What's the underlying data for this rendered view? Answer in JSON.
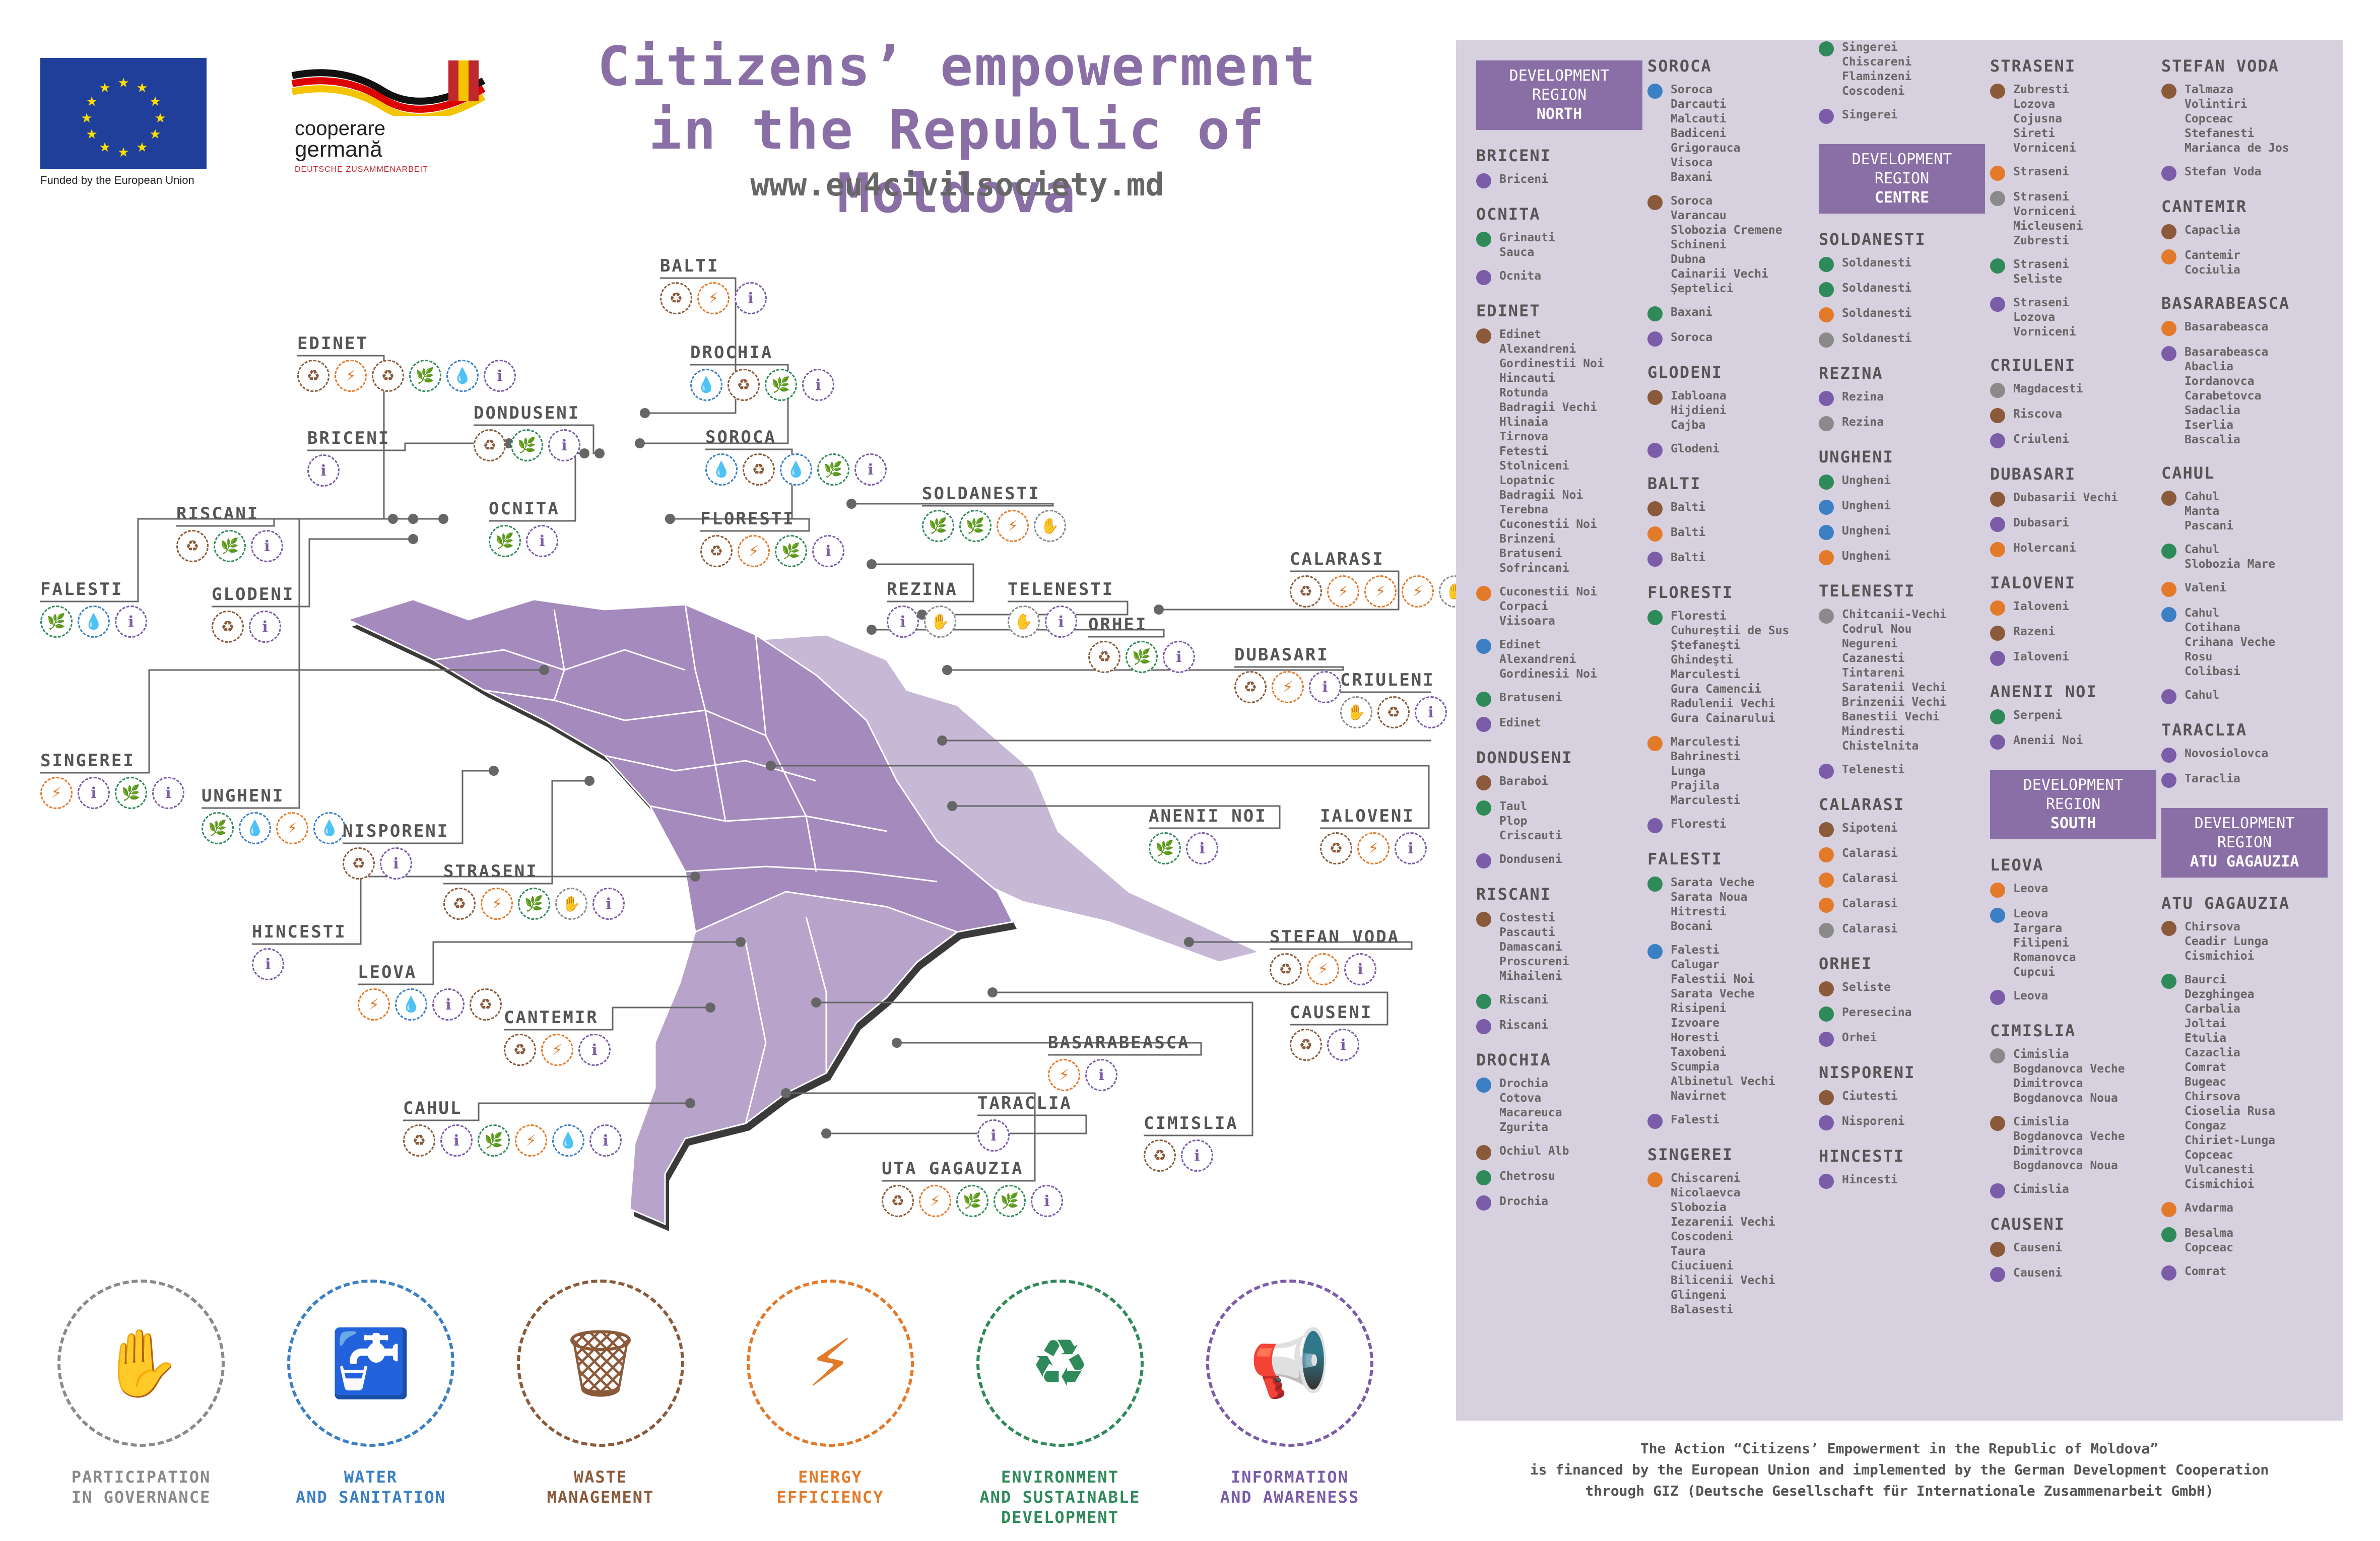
{
  "header": {
    "eu_caption": "Funded by the European Union",
    "coop_line1": "cooperare",
    "coop_line2": "germană",
    "coop_line3": "DEUTSCHE ZUSAMMENARBEIT",
    "title_line1": "Citizens’ empowerment",
    "title_line2": "in the Republic of Moldova",
    "url": "www.eu4civilsociety.md"
  },
  "colors": {
    "title": "#8a6fa6",
    "map_fill": "#a58bbd",
    "map_light": "#c7b8d6",
    "panel_bg": "#d7d0de",
    "region_box": "#8a6fa6",
    "governance": "#8a8a8a",
    "water": "#3b7fc4",
    "waste": "#8a5a3a",
    "energy": "#e37a2a",
    "environment": "#2f8a5a",
    "information": "#7b5ca8"
  },
  "map_districts": [
    {
      "name": "BALTI",
      "icons": [
        "waste",
        "energy",
        "information"
      ]
    },
    {
      "name": "EDINET",
      "icons": [
        "waste",
        "energy",
        "waste",
        "environment",
        "water",
        "information"
      ]
    },
    {
      "name": "DROCHIA",
      "icons": [
        "water",
        "waste",
        "environment",
        "information"
      ]
    },
    {
      "name": "DONDUSENI",
      "icons": [
        "waste",
        "environment",
        "information"
      ]
    },
    {
      "name": "SOROCA",
      "icons": [
        "water",
        "waste",
        "water",
        "environment",
        "information"
      ]
    },
    {
      "name": "BRICENI",
      "icons": [
        "information"
      ]
    },
    {
      "name": "SOLDANESTI",
      "icons": [
        "environment",
        "environment",
        "energy",
        "governance"
      ]
    },
    {
      "name": "OCNITA",
      "icons": [
        "environment",
        "information"
      ]
    },
    {
      "name": "RISCANI",
      "icons": [
        "waste",
        "environment",
        "information"
      ]
    },
    {
      "name": "FLORESTI",
      "icons": [
        "waste",
        "energy",
        "environment",
        "information"
      ]
    },
    {
      "name": "REZINA",
      "icons": [
        "information",
        "governance"
      ]
    },
    {
      "name": "TELENESTI",
      "icons": [
        "governance",
        "information"
      ]
    },
    {
      "name": "CALARASI",
      "icons": [
        "waste",
        "energy",
        "energy",
        "energy",
        "governance"
      ]
    },
    {
      "name": "FALESTI",
      "icons": [
        "environment",
        "water",
        "information"
      ]
    },
    {
      "name": "GLODENI",
      "icons": [
        "waste",
        "information"
      ]
    },
    {
      "name": "ORHEI",
      "icons": [
        "waste",
        "environment",
        "information"
      ]
    },
    {
      "name": "DUBASARI",
      "icons": [
        "waste",
        "energy",
        "information"
      ]
    },
    {
      "name": "CRIULENI",
      "icons": [
        "governance",
        "waste",
        "information"
      ]
    },
    {
      "name": "SINGEREI",
      "icons": [
        "energy",
        "information",
        "environment",
        "information"
      ]
    },
    {
      "name": "UNGHENI",
      "icons": [
        "environment",
        "water",
        "energy",
        "water"
      ]
    },
    {
      "name": "NISPORENI",
      "icons": [
        "waste",
        "information"
      ]
    },
    {
      "name": "ANENII NOI",
      "icons": [
        "environment",
        "information"
      ]
    },
    {
      "name": "IALOVENI",
      "icons": [
        "waste",
        "energy",
        "information"
      ]
    },
    {
      "name": "STRASENI",
      "icons": [
        "waste",
        "energy",
        "environment",
        "governance",
        "information"
      ]
    },
    {
      "name": "HINCESTI",
      "icons": [
        "information"
      ]
    },
    {
      "name": "STEFAN VODA",
      "icons": [
        "waste",
        "energy",
        "information"
      ]
    },
    {
      "name": "LEOVA",
      "icons": [
        "energy",
        "water",
        "information",
        "waste"
      ]
    },
    {
      "name": "CAUSENI",
      "icons": [
        "waste",
        "information"
      ]
    },
    {
      "name": "CANTEMIR",
      "icons": [
        "waste",
        "energy",
        "information"
      ]
    },
    {
      "name": "BASARABEASCA",
      "icons": [
        "energy",
        "information"
      ]
    },
    {
      "name": "CAHUL",
      "icons": [
        "waste",
        "information",
        "environment",
        "energy",
        "water",
        "information"
      ]
    },
    {
      "name": "TARACLIA",
      "icons": [
        "information"
      ]
    },
    {
      "name": "CIMISLIA",
      "icons": [
        "waste",
        "information"
      ]
    },
    {
      "name": "UTA GAGAUZIA",
      "icons": [
        "waste",
        "energy",
        "environment",
        "environment",
        "information"
      ]
    }
  ],
  "legend": [
    {
      "key": "governance",
      "line1": "PARTICIPATION",
      "line2": "IN GOVERNANCE",
      "line3": "",
      "icon": "people-raising-hands-icon",
      "glyph": "✋"
    },
    {
      "key": "water",
      "line1": "WATER",
      "line2": "AND SANITATION",
      "line3": "",
      "icon": "water-tap-icon",
      "glyph": "🚰"
    },
    {
      "key": "waste",
      "line1": "WASTE",
      "line2": "MANAGEMENT",
      "line3": "",
      "icon": "recycling-bin-icon",
      "glyph": "🗑"
    },
    {
      "key": "energy",
      "line1": "ENERGY",
      "line2": "EFFICIENCY",
      "line3": "",
      "icon": "house-energy-icon",
      "glyph": "⚡"
    },
    {
      "key": "environment",
      "line1": "ENVIRONMENT",
      "line2": "AND SUSTAINABLE",
      "line3": "DEVELOPMENT",
      "icon": "recycle-leaf-icon",
      "glyph": "♻"
    },
    {
      "key": "information",
      "line1": "INFORMATION",
      "line2": "AND AWARENESS",
      "line3": "",
      "icon": "megaphone-icon",
      "glyph": "📢"
    }
  ],
  "panel": {
    "columns": [
      [
        {
          "box": [
            "DEVELOPMENT",
            "REGION",
            "NORTH"
          ]
        },
        {
          "h": "BRICENI"
        },
        {
          "e": "Briceni",
          "c": "information"
        },
        {
          "h": "OCNITA"
        },
        {
          "e": "Grinauti\nSauca",
          "c": "environment"
        },
        {
          "e": "Ocnita",
          "c": "information"
        },
        {
          "h": "EDINET"
        },
        {
          "e": "Edinet\nAlexandreni\nGordinestii Noi\nHincauti\nRotunda\nBadragii Vechi\nHlinaia\nTirnova\nFetesti\nStolniceni\nLopatnic\nBadragii Noi\nTerebna\nCuconestii Noi\nBrinzeni\nBratuseni\nSofrincani",
          "c": "waste"
        },
        {
          "e": "Cuconestii Noi\nCorpaci\nViisoara",
          "c": "energy"
        },
        {
          "e": "Edinet\nAlexandreni\nGordinesii Noi",
          "c": "water"
        },
        {
          "e": "Bratuseni",
          "c": "environment"
        },
        {
          "e": "Edinet",
          "c": "information"
        },
        {
          "h": "DONDUSENI"
        },
        {
          "e": "Baraboi",
          "c": "waste"
        },
        {
          "e": "Taul\nPlop\nCriscauti",
          "c": "environment"
        },
        {
          "e": "Donduseni",
          "c": "information"
        },
        {
          "h": "RISCANI"
        },
        {
          "e": "Costesti\nPascauti\nDamascani\nProscureni\nMihaileni",
          "c": "waste"
        },
        {
          "e": "Riscani",
          "c": "environment"
        },
        {
          "e": "Riscani",
          "c": "information"
        },
        {
          "h": "DROCHIA"
        },
        {
          "e": "Drochia\nCotova\nMacareuca\nZgurita",
          "c": "water"
        },
        {
          "e": "Ochiul Alb",
          "c": "waste"
        },
        {
          "e": "Chetrosu",
          "c": "environment"
        },
        {
          "e": "Drochia",
          "c": "information"
        }
      ],
      [
        {
          "h": "SOROCA"
        },
        {
          "e": "Soroca\nDarcauti\nMalcauti\nBadiceni\nGrigorauca\nVisoca\nBaxani",
          "c": "water"
        },
        {
          "e": "Soroca\nVarancau\nSlobozia Cremene\nSchineni\nDubna\nCainarii Vechi\nŞeptelici",
          "c": "waste"
        },
        {
          "e": "Baxani",
          "c": "environment"
        },
        {
          "e": "Soroca",
          "c": "information"
        },
        {
          "h": "GLODENI"
        },
        {
          "e": "Iabloana\nHijdieni\nCajba",
          "c": "waste"
        },
        {
          "e": "Glodeni",
          "c": "information"
        },
        {
          "h": "BALTI"
        },
        {
          "e": "Balti",
          "c": "waste"
        },
        {
          "e": "Balti",
          "c": "energy"
        },
        {
          "e": "Balti",
          "c": "information"
        },
        {
          "h": "FLORESTI"
        },
        {
          "e": "Floresti\nCuhureştii de Sus\nŞtefaneşti\nGhindeşti\nMarculesti\nGura Camencii\nRadulenii Vechi\nGura Cainarului",
          "c": "environment"
        },
        {
          "e": "Marculesti\nBahrinesti\nLunga\nPrajila\nMarculesti",
          "c": "energy"
        },
        {
          "e": "Floresti",
          "c": "information"
        },
        {
          "h": "FALESTI"
        },
        {
          "e": "Sarata Veche\nSarata Noua\nHitresti\nBocani",
          "c": "environment"
        },
        {
          "e": "Falesti\nCalugar\nFalestii Noi\nSarata Veche\nRisipeni\nIzvoare\nHoresti\nTaxobeni\nScumpia\nAlbinetul Vechi\nNavirnet",
          "c": "water"
        },
        {
          "e": "Falesti",
          "c": "information"
        },
        {
          "h": "SINGEREI"
        },
        {
          "e": "Chiscareni\nNicolaevca\nSlobozia\nIezarenii Vechi\nCoscodeni\nTaura\nCiuciueni\nBilicenii Vechi\nGlingeni\nBalasesti",
          "c": "energy"
        }
      ],
      [
        {
          "e": "Singerei\nChiscareni\nFlaminzeni\nCoscodeni",
          "c": "environment"
        },
        {
          "e": "Singerei",
          "c": "information"
        },
        {
          "box": [
            "DEVELOPMENT",
            "REGION",
            "CENTRE"
          ]
        },
        {
          "h": "SOLDANESTI"
        },
        {
          "e": "Soldanesti",
          "c": "environment"
        },
        {
          "e": "Soldanesti",
          "c": "environment"
        },
        {
          "e": "Soldanesti",
          "c": "energy"
        },
        {
          "e": "Soldanesti",
          "c": "governance"
        },
        {
          "h": "REZINA"
        },
        {
          "e": "Rezina",
          "c": "information"
        },
        {
          "e": "Rezina",
          "c": "governance"
        },
        {
          "h": "UNGHENI"
        },
        {
          "e": "Ungheni",
          "c": "environment"
        },
        {
          "e": "Ungheni",
          "c": "water"
        },
        {
          "e": "Ungheni",
          "c": "water"
        },
        {
          "e": "Ungheni",
          "c": "energy"
        },
        {
          "h": "TELENESTI"
        },
        {
          "e": "Chitcanii-Vechi\nCodrul Nou\nNegureni\nCazanesti\nTintareni\nSaratenii Vechi\nBrinzenii Vechi\nBanestii Vechi\nMindresti\nChistelnita",
          "c": "governance"
        },
        {
          "e": "Telenesti",
          "c": "information"
        },
        {
          "h": "CALARASI"
        },
        {
          "e": "Sipoteni",
          "c": "waste"
        },
        {
          "e": "Calarasi",
          "c": "energy"
        },
        {
          "e": "Calarasi",
          "c": "energy"
        },
        {
          "e": "Calarasi",
          "c": "energy"
        },
        {
          "e": "Calarasi",
          "c": "governance"
        },
        {
          "h": "ORHEI"
        },
        {
          "e": "Seliste",
          "c": "waste"
        },
        {
          "e": "Peresecina",
          "c": "environment"
        },
        {
          "e": "Orhei",
          "c": "information"
        },
        {
          "h": "NISPORENI"
        },
        {
          "e": "Ciutesti",
          "c": "waste"
        },
        {
          "e": "Nisporeni",
          "c": "information"
        },
        {
          "h": "HINCESTI"
        },
        {
          "e": "Hincesti",
          "c": "information"
        }
      ],
      [
        {
          "h": "STRASENI"
        },
        {
          "e": "Zubresti\nLozova\nCojusna\nSireti\nVorniceni",
          "c": "waste"
        },
        {
          "e": "Straseni",
          "c": "energy"
        },
        {
          "e": "Straseni\nVorniceni\nMicleuseni\nZubresti",
          "c": "governance"
        },
        {
          "e": "Straseni\nSeliste",
          "c": "environment"
        },
        {
          "e": "Straseni\nLozova\nVorniceni",
          "c": "information"
        },
        {
          "h": "CRIULENI"
        },
        {
          "e": "Magdacesti",
          "c": "governance"
        },
        {
          "e": "Riscova",
          "c": "waste"
        },
        {
          "e": "Criuleni",
          "c": "information"
        },
        {
          "h": "DUBASARI"
        },
        {
          "e": "Dubasarii Vechi",
          "c": "waste"
        },
        {
          "e": "Dubasari",
          "c": "information"
        },
        {
          "e": "Holercani",
          "c": "energy"
        },
        {
          "h": "IALOVENI"
        },
        {
          "e": "Ialoveni",
          "c": "energy"
        },
        {
          "e": "Razeni",
          "c": "waste"
        },
        {
          "e": "Ialoveni",
          "c": "information"
        },
        {
          "h": "ANENII NOI"
        },
        {
          "e": "Serpeni",
          "c": "environment"
        },
        {
          "e": "Anenii Noi",
          "c": "information"
        },
        {
          "box": [
            "DEVELOPMENT",
            "REGION",
            "SOUTH"
          ]
        },
        {
          "h": "LEOVA"
        },
        {
          "e": "Leova",
          "c": "energy"
        },
        {
          "e": "Leova\nIargara\nFilipeni\nRomanovca\nCupcui",
          "c": "water"
        },
        {
          "e": "Leova",
          "c": "information"
        },
        {
          "h": "CIMISLIA"
        },
        {
          "e": "Cimislia\nBogdanovca Veche\nDimitrovca\nBogdanovca Noua",
          "c": "governance"
        },
        {
          "e": "Cimislia\nBogdanovca Veche\nDimitrovca\nBogdanovca Noua",
          "c": "waste"
        },
        {
          "e": "Cimislia",
          "c": "information"
        },
        {
          "h": "CAUSENI"
        },
        {
          "e": "Causeni",
          "c": "waste"
        },
        {
          "e": "Causeni",
          "c": "information"
        }
      ],
      [
        {
          "h": "STEFAN VODA"
        },
        {
          "e": "Talmaza\nVolintiri\nCopceac\nStefanesti\nMarianca de Jos",
          "c": "waste"
        },
        {
          "e": "Stefan Voda",
          "c": "information"
        },
        {
          "h": "CANTEMIR"
        },
        {
          "e": "Capaclia",
          "c": "waste"
        },
        {
          "e": "Cantemir\nCociulia",
          "c": "energy"
        },
        {
          "h": "BASARABEASCA"
        },
        {
          "e": "Basarabeasca",
          "c": "energy"
        },
        {
          "e": "Basarabeasca\nAbaclia\nIordanovca\nCarabetovca\nSadaclia\nIserlia\nBascalia",
          "c": "information"
        },
        {
          "h": "CAHUL"
        },
        {
          "e": "Cahul\nManta\nPascani",
          "c": "waste"
        },
        {
          "e": "Cahul\nSlobozia Mare",
          "c": "environment"
        },
        {
          "e": "Valeni",
          "c": "energy"
        },
        {
          "e": "Cahul\nCotihana\nCrihana Veche\nRosu\nColibasi",
          "c": "water"
        },
        {
          "e": "Cahul",
          "c": "information"
        },
        {
          "h": "TARACLIA"
        },
        {
          "e": "Novosiolovca",
          "c": "information"
        },
        {
          "e": "Taraclia",
          "c": "information"
        },
        {
          "box": [
            "DEVELOPMENT",
            "REGION",
            "ATU GAGAUZIA"
          ]
        },
        {
          "h": "ATU GAGAUZIA"
        },
        {
          "e": "Chirsova\nCeadir Lunga\nCismichioi",
          "c": "waste"
        },
        {
          "e": "Baurci\nDezghingea\nCarbalia\nJoltai\nEtulia\nCazaclia\nComrat\nBugeac\nChirsova\nCioselia Rusa\nCongaz\nChiriet-Lunga\nCopceac\nVulcanesti\nCismichioi",
          "c": "environment"
        },
        {
          "e": "Avdarma",
          "c": "energy"
        },
        {
          "e": "Besalma\nCopceac",
          "c": "environment"
        },
        {
          "e": "Comrat",
          "c": "information"
        }
      ]
    ]
  },
  "footnote": {
    "line1": "The Action “Citizens’ Empowerment in the Republic of Moldova”",
    "line2": "is financed by the European Union and implemented by the German Development Cooperation",
    "line3": "through GIZ (Deutsche Gesellschaft für Internationale Zusammenarbeit GmbH)"
  }
}
